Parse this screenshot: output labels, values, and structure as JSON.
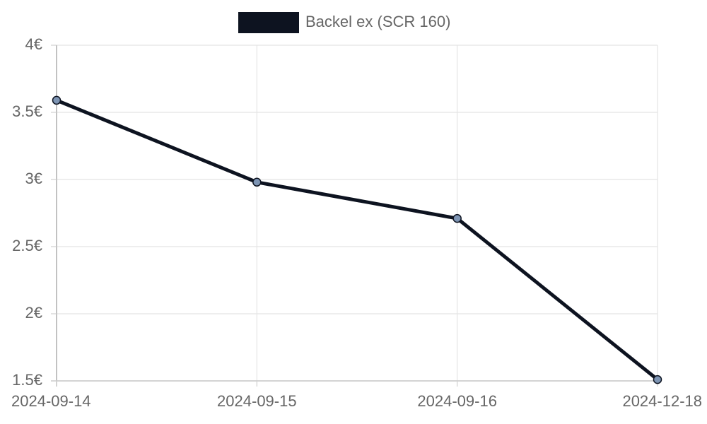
{
  "chart_data": {
    "type": "line",
    "categories": [
      "2024-09-14",
      "2024-09-15",
      "2024-09-16",
      "2024-12-18"
    ],
    "series": [
      {
        "name": "Backel ex (SCR 160)",
        "values": [
          3.59,
          2.98,
          2.71,
          1.51
        ],
        "color": "#0d1320",
        "point_color": "#7d94b3"
      }
    ],
    "y_ticks": [
      "1.5€",
      "2€",
      "2.5€",
      "3€",
      "3.5€",
      "4€"
    ],
    "y_tick_values": [
      1.5,
      2,
      2.5,
      3,
      3.5,
      4
    ],
    "ylim": [
      1.5,
      4
    ],
    "grid": true,
    "legend_position": "top",
    "title": "",
    "xlabel": "",
    "ylabel": ""
  }
}
